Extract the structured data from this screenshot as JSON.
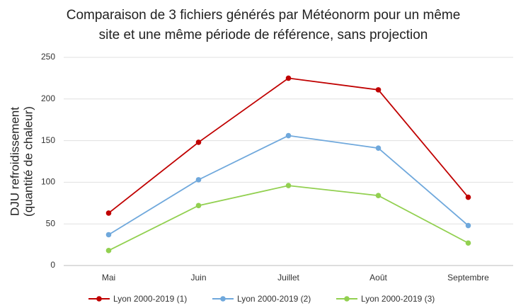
{
  "chart_data": {
    "type": "line",
    "title": [
      "Comparaison de 3 fichiers générés par Météonorm pour un même",
      "site et une même période de référence, sans projection"
    ],
    "ylabel": [
      "DJU refroidissement",
      "(quantité de chaleur)"
    ],
    "categories": [
      "Mai",
      "Juin",
      "Juillet",
      "Août",
      "Septembre"
    ],
    "series": [
      {
        "name": "Lyon 2000-2019 (1)",
        "color": "#c00000",
        "values": [
          63,
          148,
          225,
          211,
          82
        ]
      },
      {
        "name": "Lyon 2000-2019 (2)",
        "color": "#6fa8dc",
        "values": [
          37,
          103,
          156,
          141,
          48
        ]
      },
      {
        "name": "Lyon 2000-2019 (3)",
        "color": "#92d050",
        "values": [
          18,
          72,
          96,
          84,
          27
        ]
      }
    ],
    "ylim": [
      0,
      250
    ],
    "yticks": [
      0,
      50,
      100,
      150,
      200,
      250
    ],
    "grid": true,
    "legend": "bottom"
  }
}
